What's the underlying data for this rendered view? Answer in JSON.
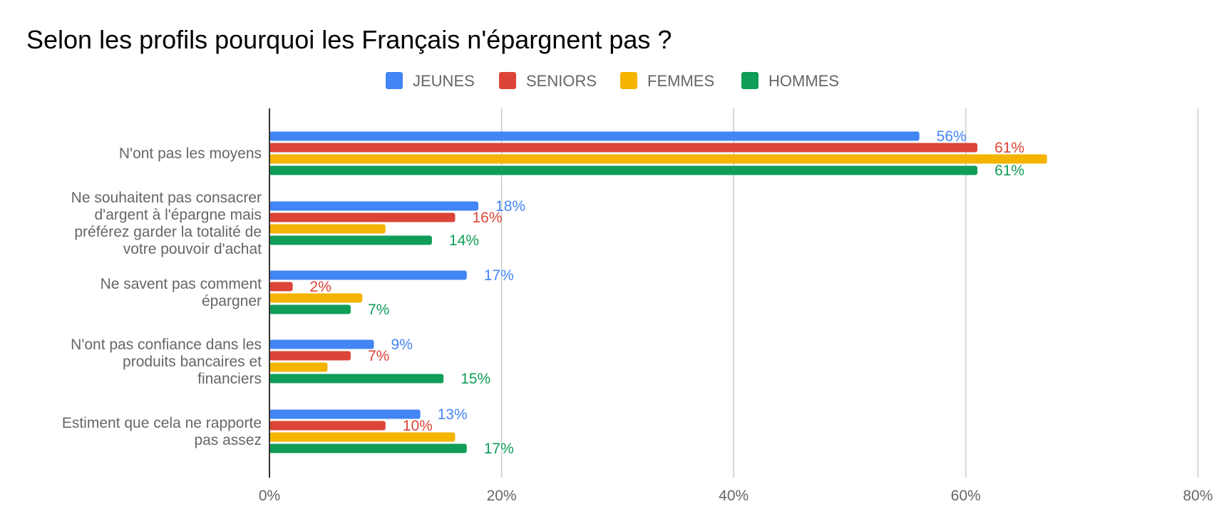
{
  "chart_data": {
    "type": "bar",
    "orientation": "horizontal",
    "title": "Selon les profils pourquoi les Français n'épargnent pas ?",
    "xlabel": "",
    "ylabel": "",
    "xlim": [
      0,
      80
    ],
    "ticks": [
      0,
      20,
      40,
      60,
      80
    ],
    "tick_labels": [
      "0%",
      "20%",
      "40%",
      "60%",
      "80%"
    ],
    "grid": true,
    "legend_position": "top",
    "categories": [
      [
        "N'ont pas les moyens"
      ],
      [
        "Ne souhaitent pas consacrer",
        "d'argent à l'épargne mais",
        "préférez garder la totalité de",
        "votre pouvoir d'achat"
      ],
      [
        "Ne savent pas comment",
        "épargner"
      ],
      [
        "N'ont pas confiance dans les",
        "produits bancaires et",
        "financiers"
      ],
      [
        "Estiment que cela ne rapporte",
        "pas assez"
      ]
    ],
    "series": [
      {
        "name": "JEUNES",
        "color": "#4285f4",
        "values": [
          56,
          18,
          17,
          9,
          13
        ],
        "labels": [
          "56%",
          "18%",
          "17%",
          "9%",
          "13%"
        ]
      },
      {
        "name": "SENIORS",
        "color": "#db4437",
        "values": [
          61,
          16,
          2,
          7,
          10
        ],
        "labels": [
          "61%",
          "16%",
          "2%",
          "7%",
          "10%"
        ]
      },
      {
        "name": "FEMMES",
        "color": "#f4b400",
        "values": [
          67,
          10,
          8,
          5,
          16
        ],
        "labels": [
          "",
          "",
          "",
          "",
          ""
        ]
      },
      {
        "name": "HOMMES",
        "color": "#0f9d58",
        "values": [
          61,
          14,
          7,
          15,
          17
        ],
        "labels": [
          "61%",
          "14%",
          "7%",
          "15%",
          "17%"
        ]
      }
    ]
  }
}
